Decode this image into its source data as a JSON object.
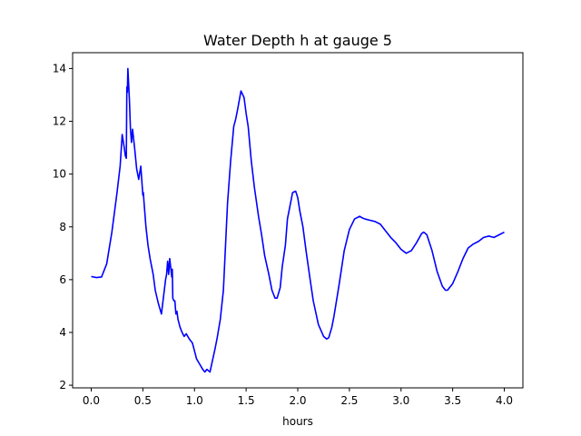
{
  "chart_data": {
    "type": "line",
    "title": "Water Depth h at gauge 5",
    "xlabel": "hours",
    "ylabel": "",
    "xlim": [
      -0.18,
      4.18
    ],
    "ylim": [
      1.9,
      14.6
    ],
    "xticks": [
      0.0,
      0.5,
      1.0,
      1.5,
      2.0,
      2.5,
      3.0,
      3.5,
      4.0
    ],
    "xtick_labels": [
      "0.0",
      "0.5",
      "1.0",
      "1.5",
      "2.0",
      "2.5",
      "3.0",
      "3.5",
      "4.0"
    ],
    "yticks": [
      2,
      4,
      6,
      8,
      10,
      12,
      14
    ],
    "ytick_labels": [
      "2",
      "4",
      "6",
      "8",
      "10",
      "12",
      "14"
    ],
    "grid": false,
    "series": [
      {
        "color": "#0000ff",
        "x": [
          0.0,
          0.05,
          0.1,
          0.15,
          0.2,
          0.25,
          0.28,
          0.3,
          0.32,
          0.33,
          0.34,
          0.345,
          0.35,
          0.355,
          0.36,
          0.37,
          0.38,
          0.39,
          0.4,
          0.42,
          0.44,
          0.46,
          0.48,
          0.5,
          0.505,
          0.51,
          0.52,
          0.53,
          0.55,
          0.57,
          0.6,
          0.62,
          0.65,
          0.68,
          0.72,
          0.73,
          0.74,
          0.75,
          0.76,
          0.78,
          0.785,
          0.79,
          0.8,
          0.81,
          0.82,
          0.83,
          0.84,
          0.86,
          0.88,
          0.9,
          0.92,
          0.95,
          0.98,
          1.0,
          1.02,
          1.05,
          1.08,
          1.1,
          1.12,
          1.15,
          1.2,
          1.22,
          1.25,
          1.28,
          1.32,
          1.35,
          1.38,
          1.4,
          1.42,
          1.45,
          1.48,
          1.5,
          1.52,
          1.55,
          1.58,
          1.62,
          1.65,
          1.68,
          1.72,
          1.75,
          1.78,
          1.8,
          1.83,
          1.85,
          1.88,
          1.9,
          1.93,
          1.95,
          1.98,
          2.0,
          2.02,
          2.05,
          2.08,
          2.12,
          2.15,
          2.2,
          2.25,
          2.28,
          2.3,
          2.33,
          2.35,
          2.4,
          2.45,
          2.5,
          2.55,
          2.6,
          2.62,
          2.65,
          2.7,
          2.75,
          2.8,
          2.85,
          2.9,
          2.95,
          3.0,
          3.05,
          3.1,
          3.15,
          3.2,
          3.22,
          3.25,
          3.3,
          3.35,
          3.4,
          3.43,
          3.45,
          3.5,
          3.55,
          3.6,
          3.65,
          3.7,
          3.75,
          3.8,
          3.85,
          3.9,
          3.95,
          4.0
        ],
        "y": [
          6.12,
          6.08,
          6.1,
          6.6,
          7.8,
          9.3,
          10.3,
          11.5,
          11.0,
          10.7,
          10.6,
          13.3,
          13.1,
          14.0,
          13.6,
          12.8,
          11.7,
          11.2,
          11.7,
          11.0,
          10.2,
          9.8,
          10.3,
          9.2,
          9.3,
          9.0,
          8.5,
          8.0,
          7.3,
          6.8,
          6.2,
          5.6,
          5.1,
          4.7,
          6.0,
          6.2,
          6.7,
          6.2,
          6.8,
          6.1,
          6.4,
          5.3,
          5.2,
          5.2,
          4.7,
          4.8,
          4.5,
          4.2,
          4.0,
          3.85,
          3.95,
          3.75,
          3.6,
          3.3,
          3.0,
          2.8,
          2.6,
          2.5,
          2.6,
          2.5,
          3.4,
          3.8,
          4.5,
          5.6,
          8.9,
          10.5,
          11.8,
          12.1,
          12.5,
          13.15,
          12.9,
          12.3,
          11.8,
          10.5,
          9.5,
          8.4,
          7.7,
          6.9,
          6.2,
          5.6,
          5.3,
          5.3,
          5.7,
          6.5,
          7.3,
          8.3,
          8.9,
          9.3,
          9.35,
          9.1,
          8.6,
          8.0,
          7.1,
          6.0,
          5.2,
          4.3,
          3.85,
          3.75,
          3.8,
          4.2,
          4.6,
          5.8,
          7.1,
          7.9,
          8.3,
          8.4,
          8.35,
          8.3,
          8.25,
          8.2,
          8.1,
          7.85,
          7.6,
          7.4,
          7.15,
          7.0,
          7.1,
          7.4,
          7.75,
          7.8,
          7.7,
          7.1,
          6.3,
          5.75,
          5.6,
          5.6,
          5.85,
          6.3,
          6.8,
          7.2,
          7.35,
          7.45,
          7.6,
          7.65,
          7.6,
          7.7,
          7.8
        ]
      }
    ]
  }
}
